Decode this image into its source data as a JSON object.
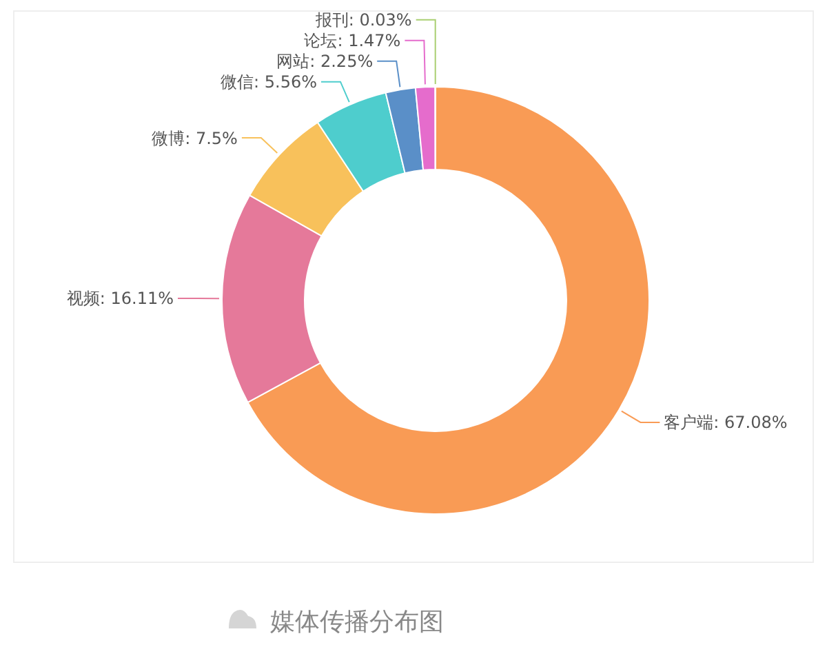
{
  "chart_data": {
    "type": "donut",
    "categories": [
      "客户端",
      "视频",
      "微博",
      "微信",
      "网站",
      "论坛",
      "报刊"
    ],
    "values": [
      67.08,
      16.11,
      7.5,
      5.56,
      2.25,
      1.47,
      0.03
    ],
    "value_labels": [
      "67.08%",
      "16.11%",
      "7.5%",
      "5.56%",
      "2.25%",
      "1.47%",
      "0.03%"
    ],
    "colors": [
      "#f99b55",
      "#e5799a",
      "#f8c15b",
      "#4ecdcd",
      "#5a8fc8",
      "#e56ccc",
      "#a9cf71"
    ],
    "annotations": [
      "媒体传播分布图"
    ]
  }
}
